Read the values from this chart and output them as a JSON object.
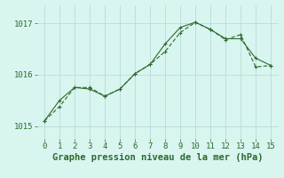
{
  "x": [
    0,
    1,
    2,
    3,
    4,
    5,
    6,
    7,
    8,
    9,
    10,
    11,
    12,
    13,
    14,
    15
  ],
  "line1_y": [
    1015.1,
    1015.5,
    1015.75,
    1015.72,
    1015.58,
    1015.72,
    1016.02,
    1016.2,
    1016.6,
    1016.92,
    1017.02,
    1016.88,
    1016.7,
    1016.7,
    1016.32,
    1016.18
  ],
  "line2_y": [
    1015.1,
    1015.38,
    1015.75,
    1015.75,
    1015.58,
    1015.72,
    1016.02,
    1016.2,
    1016.45,
    1016.82,
    1017.02,
    1016.88,
    1016.68,
    1016.78,
    1016.15,
    1016.18
  ],
  "line_color": "#2d6a2d",
  "bg_color": "#d8f5f0",
  "grid_color": "#b8ddd8",
  "xlabel": "Graphe pression niveau de la mer (hPa)",
  "xlim": [
    -0.5,
    15.5
  ],
  "ylim": [
    1014.75,
    1017.35
  ],
  "yticks": [
    1015,
    1016,
    1017
  ],
  "xticks": [
    0,
    1,
    2,
    3,
    4,
    5,
    6,
    7,
    8,
    9,
    10,
    11,
    12,
    13,
    14,
    15
  ],
  "tick_fontsize": 6.5,
  "xlabel_fontsize": 7.5
}
